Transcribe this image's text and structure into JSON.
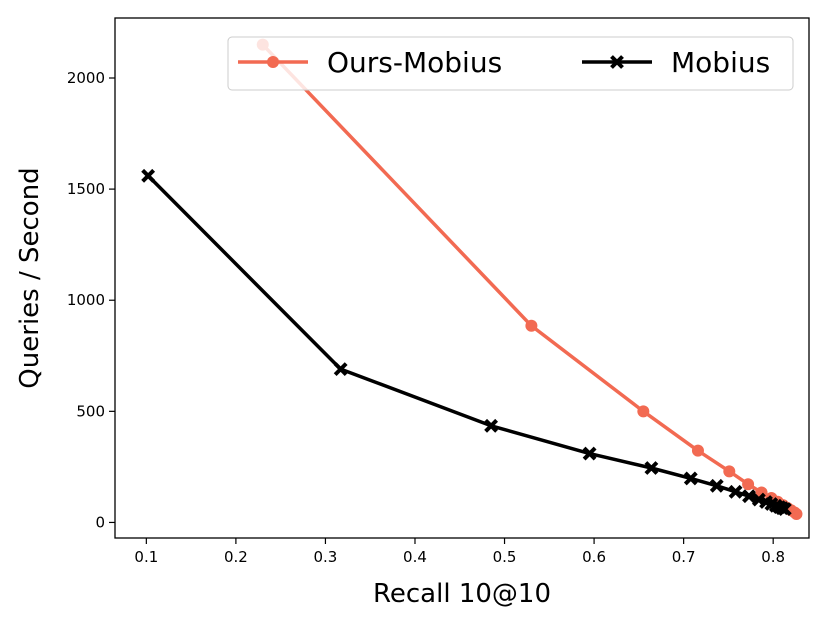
{
  "chart_data": {
    "type": "line",
    "xlabel": "Recall 10@10",
    "ylabel": "Queries / Second",
    "xlim": [
      0.065,
      0.84
    ],
    "ylim": [
      -70,
      2270
    ],
    "xticks": [
      0.1,
      0.2,
      0.3,
      0.4,
      0.5,
      0.6,
      0.7,
      0.8
    ],
    "xtick_labels": [
      "0.1",
      "0.2",
      "0.3",
      "0.4",
      "0.5",
      "0.6",
      "0.7",
      "0.8"
    ],
    "yticks": [
      0,
      500,
      1000,
      1500,
      2000
    ],
    "ytick_labels": [
      "0",
      "500",
      "1000",
      "1500",
      "2000"
    ],
    "grid": false,
    "legend_position": "top-right",
    "series": [
      {
        "name": "Ours-Mobius",
        "color": "#f26a52",
        "marker": "circle",
        "x": [
          0.23,
          0.53,
          0.655,
          0.716,
          0.751,
          0.772,
          0.787,
          0.798,
          0.805,
          0.811,
          0.816,
          0.82,
          0.824,
          0.826
        ],
        "y": [
          2150,
          885,
          500,
          323,
          230,
          172,
          135,
          110,
          93,
          78,
          65,
          55,
          45,
          38
        ]
      },
      {
        "name": "Mobius",
        "color": "#000000",
        "marker": "x",
        "x": [
          0.102,
          0.317,
          0.485,
          0.595,
          0.664,
          0.708,
          0.737,
          0.758,
          0.773,
          0.784,
          0.792,
          0.798,
          0.803,
          0.807,
          0.81,
          0.813
        ],
        "y": [
          1560,
          690,
          435,
          310,
          245,
          198,
          165,
          138,
          118,
          103,
          92,
          83,
          75,
          69,
          64,
          60
        ]
      }
    ]
  }
}
